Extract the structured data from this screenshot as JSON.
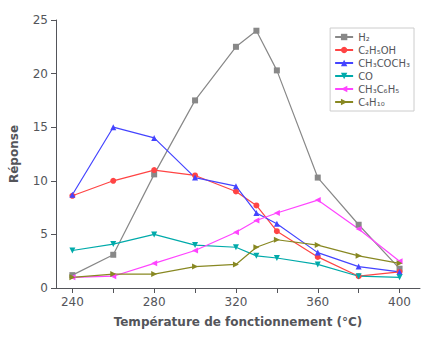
{
  "chart_data": {
    "type": "line",
    "xlabel": "Température de fonctionnement (°C)",
    "ylabel": "Réponse",
    "x": [
      240,
      260,
      280,
      300,
      320,
      330,
      340,
      360,
      380,
      400
    ],
    "series": [
      {
        "name": "H₂",
        "color": "#888888",
        "marker": "square",
        "values": [
          1.2,
          3.1,
          10.6,
          17.5,
          22.5,
          24.0,
          20.3,
          10.3,
          5.9,
          1.8
        ]
      },
      {
        "name": "C₂H₅OH",
        "color": "#ff4444",
        "marker": "circle",
        "values": [
          8.6,
          10.0,
          11.0,
          10.5,
          9.0,
          7.7,
          5.3,
          2.9,
          1.1,
          1.5
        ]
      },
      {
        "name": "CH₃COCH₃",
        "color": "#4444ff",
        "marker": "triangle-up",
        "values": [
          8.7,
          15.0,
          14.0,
          10.3,
          9.5,
          7.0,
          6.0,
          3.3,
          2.0,
          1.5
        ]
      },
      {
        "name": "CO",
        "color": "#00aaaa",
        "marker": "triangle-down",
        "values": [
          3.5,
          4.1,
          5.0,
          4.0,
          3.8,
          3.0,
          2.8,
          2.2,
          1.1,
          1.0
        ]
      },
      {
        "name": "CH₃C₆H₅",
        "color": "#ff44ff",
        "marker": "triangle-left",
        "values": [
          1.0,
          1.1,
          2.3,
          3.5,
          5.2,
          6.3,
          7.0,
          8.2,
          5.5,
          2.5
        ]
      },
      {
        "name": "C₄H₁₀",
        "color": "#888822",
        "marker": "triangle-right",
        "values": [
          1.0,
          1.3,
          1.3,
          2.0,
          2.2,
          3.8,
          4.5,
          4.0,
          3.0,
          2.3
        ]
      }
    ],
    "xlim": [
      232,
      410
    ],
    "xticks": [
      240,
      {
        "value": 260,
        "label": ""
      },
      280,
      {
        "value": 300,
        "label": ""
      },
      320,
      {
        "value": 340,
        "label": ""
      },
      360,
      {
        "value": 380,
        "label": ""
      },
      400
    ],
    "ylim": [
      0,
      25
    ],
    "yticks": [
      0,
      5,
      10,
      15,
      20,
      25
    ],
    "grid": false,
    "legend": "upper right"
  }
}
